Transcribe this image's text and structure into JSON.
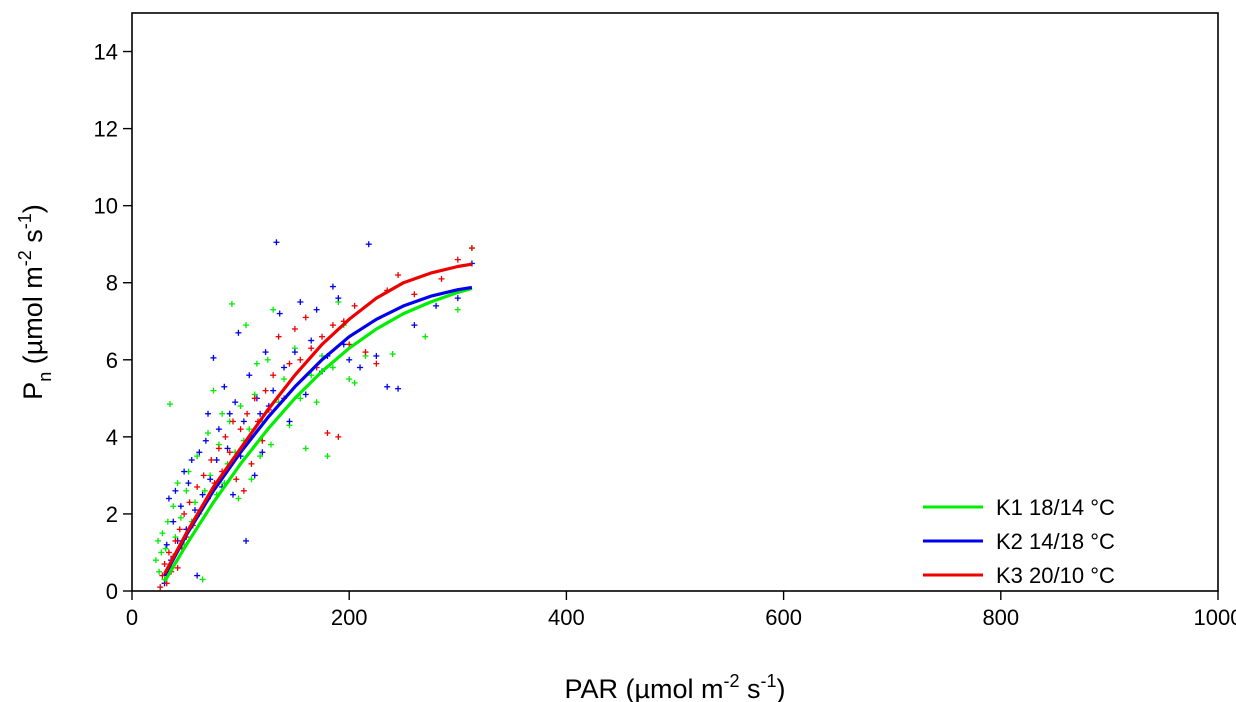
{
  "chart_data": {
    "type": "scatter",
    "xlabel": {
      "main": "PAR (µmol m",
      "sup1": "-2",
      "mid": " s",
      "sup2": "-1",
      "end": ")"
    },
    "ylabel": {
      "main": "P",
      "sub": "n",
      "rest": " (µmol m",
      "sup1": "-2",
      "mid": " s",
      "sup2": "-1",
      "end": ")"
    },
    "xlim": [
      0,
      1000
    ],
    "ylim": [
      0,
      15
    ],
    "xticks": [
      "0",
      "200",
      "400",
      "600",
      "800",
      "1000"
    ],
    "yticks": [
      "0",
      "2",
      "4",
      "6",
      "8",
      "10",
      "12",
      "14"
    ],
    "grid": false,
    "legend_position": "bottom-right",
    "series": [
      {
        "name": "K1 18/14 °C",
        "color": "#00ee00",
        "marker": "+",
        "fit": {
          "x": [
            30,
            50,
            75,
            100,
            125,
            150,
            175,
            200,
            225,
            250,
            275,
            300,
            313
          ],
          "y": [
            0.25,
            1.2,
            2.3,
            3.3,
            4.2,
            5.0,
            5.7,
            6.3,
            6.8,
            7.2,
            7.5,
            7.75,
            7.85
          ]
        },
        "points": [
          [
            22,
            0.8
          ],
          [
            24,
            1.3
          ],
          [
            25,
            0.5
          ],
          [
            27,
            1.0
          ],
          [
            28,
            1.5
          ],
          [
            30,
            0.3
          ],
          [
            31,
            1.1
          ],
          [
            33,
            1.8
          ],
          [
            35,
            4.85
          ],
          [
            36,
            0.6
          ],
          [
            38,
            2.2
          ],
          [
            40,
            1.4
          ],
          [
            42,
            2.8
          ],
          [
            45,
            1.9
          ],
          [
            48,
            1.2
          ],
          [
            50,
            2.6
          ],
          [
            52,
            3.1
          ],
          [
            55,
            1.8
          ],
          [
            58,
            2.3
          ],
          [
            60,
            3.5
          ],
          [
            62,
            2.0
          ],
          [
            65,
            0.3
          ],
          [
            67,
            2.6
          ],
          [
            70,
            4.1
          ],
          [
            72,
            3.0
          ],
          [
            75,
            5.2
          ],
          [
            78,
            2.5
          ],
          [
            80,
            3.8
          ],
          [
            83,
            4.6
          ],
          [
            85,
            2.8
          ],
          [
            88,
            3.3
          ],
          [
            90,
            4.4
          ],
          [
            92,
            7.45
          ],
          [
            95,
            3.6
          ],
          [
            98,
            2.4
          ],
          [
            100,
            4.8
          ],
          [
            103,
            3.9
          ],
          [
            105,
            6.9
          ],
          [
            108,
            4.2
          ],
          [
            110,
            2.9
          ],
          [
            113,
            5.1
          ],
          [
            115,
            5.9
          ],
          [
            118,
            3.5
          ],
          [
            120,
            4.4
          ],
          [
            125,
            6.0
          ],
          [
            128,
            3.8
          ],
          [
            130,
            7.3
          ],
          [
            135,
            4.9
          ],
          [
            140,
            5.5
          ],
          [
            145,
            4.3
          ],
          [
            150,
            6.3
          ],
          [
            155,
            5.0
          ],
          [
            160,
            3.7
          ],
          [
            165,
            5.6
          ],
          [
            170,
            4.9
          ],
          [
            175,
            6.1
          ],
          [
            180,
            3.5
          ],
          [
            185,
            5.8
          ],
          [
            190,
            7.5
          ],
          [
            195,
            6.9
          ],
          [
            200,
            5.5
          ],
          [
            205,
            5.4
          ],
          [
            215,
            6.1
          ],
          [
            240,
            6.15
          ],
          [
            270,
            6.6
          ],
          [
            300,
            7.3
          ],
          [
            313,
            8.9
          ]
        ]
      },
      {
        "name": "K2 14/18 °C",
        "color": "#0000ee",
        "marker": "+",
        "fit": {
          "x": [
            30,
            50,
            75,
            100,
            125,
            150,
            175,
            200,
            225,
            250,
            275,
            300,
            313
          ],
          "y": [
            0.4,
            1.45,
            2.6,
            3.6,
            4.5,
            5.3,
            6.0,
            6.6,
            7.05,
            7.4,
            7.65,
            7.82,
            7.88
          ]
        },
        "points": [
          [
            30,
            0.2
          ],
          [
            32,
            1.2
          ],
          [
            34,
            2.4
          ],
          [
            36,
            0.8
          ],
          [
            38,
            1.8
          ],
          [
            40,
            2.6
          ],
          [
            42,
            1.3
          ],
          [
            45,
            2.2
          ],
          [
            48,
            3.1
          ],
          [
            50,
            1.6
          ],
          [
            52,
            2.8
          ],
          [
            55,
            3.4
          ],
          [
            58,
            2.1
          ],
          [
            60,
            0.4
          ],
          [
            62,
            3.6
          ],
          [
            65,
            2.5
          ],
          [
            68,
            3.9
          ],
          [
            70,
            4.6
          ],
          [
            72,
            2.9
          ],
          [
            75,
            6.05
          ],
          [
            78,
            3.4
          ],
          [
            80,
            4.2
          ],
          [
            83,
            2.7
          ],
          [
            85,
            5.3
          ],
          [
            88,
            3.7
          ],
          [
            90,
            4.6
          ],
          [
            93,
            2.5
          ],
          [
            95,
            4.9
          ],
          [
            98,
            6.7
          ],
          [
            100,
            3.5
          ],
          [
            103,
            4.4
          ],
          [
            105,
            1.3
          ],
          [
            108,
            5.6
          ],
          [
            110,
            4.0
          ],
          [
            113,
            3.0
          ],
          [
            115,
            5.0
          ],
          [
            118,
            4.6
          ],
          [
            120,
            3.6
          ],
          [
            123,
            6.2
          ],
          [
            126,
            4.8
          ],
          [
            130,
            5.2
          ],
          [
            133,
            9.05
          ],
          [
            136,
            7.2
          ],
          [
            140,
            5.8
          ],
          [
            145,
            4.4
          ],
          [
            150,
            6.2
          ],
          [
            155,
            7.5
          ],
          [
            160,
            5.1
          ],
          [
            165,
            6.5
          ],
          [
            170,
            7.3
          ],
          [
            175,
            5.7
          ],
          [
            180,
            6.1
          ],
          [
            185,
            7.9
          ],
          [
            190,
            7.6
          ],
          [
            195,
            6.4
          ],
          [
            200,
            6.0
          ],
          [
            210,
            5.8
          ],
          [
            218,
            9.0
          ],
          [
            225,
            6.1
          ],
          [
            235,
            5.3
          ],
          [
            245,
            5.25
          ],
          [
            260,
            6.9
          ],
          [
            280,
            7.4
          ],
          [
            300,
            7.6
          ],
          [
            313,
            8.5
          ]
        ]
      },
      {
        "name": "K3 20/10 °C",
        "color": "#ee0000",
        "marker": "+",
        "fit": {
          "x": [
            30,
            50,
            75,
            100,
            125,
            150,
            175,
            200,
            225,
            250,
            275,
            300,
            313
          ],
          "y": [
            0.45,
            1.5,
            2.7,
            3.7,
            4.7,
            5.6,
            6.4,
            7.05,
            7.6,
            8.0,
            8.25,
            8.42,
            8.48
          ]
        },
        "points": [
          [
            26,
            0.1
          ],
          [
            28,
            0.4
          ],
          [
            30,
            0.7
          ],
          [
            32,
            0.2
          ],
          [
            34,
            1.0
          ],
          [
            36,
            0.5
          ],
          [
            38,
            0.9
          ],
          [
            40,
            1.3
          ],
          [
            42,
            0.6
          ],
          [
            44,
            1.6
          ],
          [
            46,
            1.1
          ],
          [
            48,
            2.0
          ],
          [
            50,
            1.4
          ],
          [
            53,
            2.3
          ],
          [
            56,
            1.7
          ],
          [
            60,
            2.7
          ],
          [
            63,
            2.1
          ],
          [
            66,
            3.0
          ],
          [
            70,
            2.4
          ],
          [
            73,
            3.4
          ],
          [
            76,
            2.8
          ],
          [
            80,
            3.7
          ],
          [
            83,
            3.1
          ],
          [
            86,
            4.0
          ],
          [
            90,
            3.6
          ],
          [
            93,
            4.4
          ],
          [
            96,
            2.9
          ],
          [
            100,
            4.2
          ],
          [
            103,
            2.6
          ],
          [
            106,
            4.6
          ],
          [
            110,
            3.3
          ],
          [
            113,
            5.0
          ],
          [
            116,
            4.4
          ],
          [
            120,
            3.9
          ],
          [
            123,
            5.2
          ],
          [
            126,
            4.7
          ],
          [
            130,
            5.6
          ],
          [
            135,
            6.6
          ],
          [
            140,
            5.0
          ],
          [
            145,
            5.9
          ],
          [
            150,
            6.8
          ],
          [
            155,
            6.0
          ],
          [
            160,
            7.1
          ],
          [
            165,
            6.3
          ],
          [
            170,
            5.8
          ],
          [
            175,
            6.6
          ],
          [
            180,
            4.1
          ],
          [
            185,
            6.9
          ],
          [
            190,
            4.0
          ],
          [
            195,
            7.0
          ],
          [
            200,
            6.4
          ],
          [
            205,
            7.4
          ],
          [
            215,
            6.2
          ],
          [
            225,
            5.9
          ],
          [
            235,
            7.8
          ],
          [
            245,
            8.2
          ],
          [
            260,
            7.7
          ],
          [
            285,
            8.1
          ],
          [
            300,
            8.6
          ],
          [
            313,
            8.9
          ]
        ]
      }
    ]
  }
}
